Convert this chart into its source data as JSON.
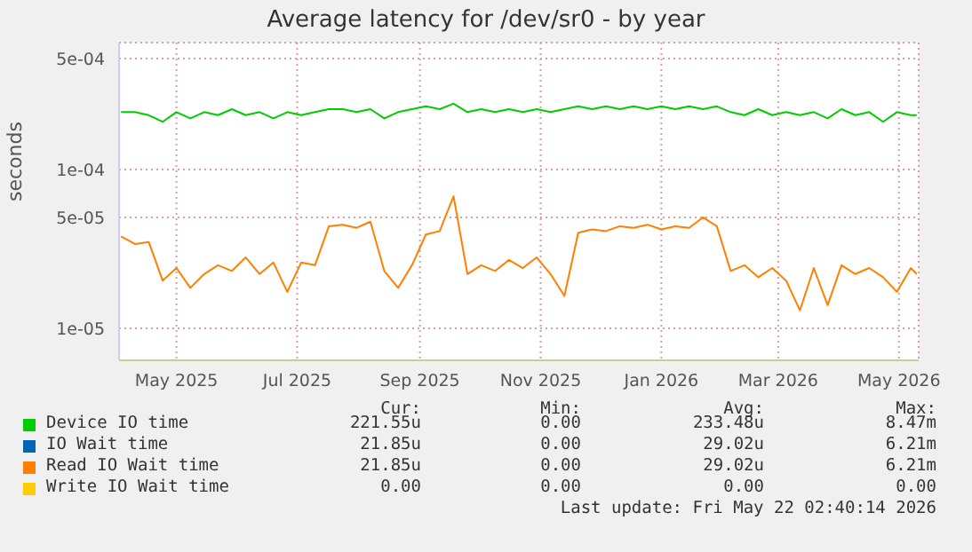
{
  "chart_data": {
    "type": "line",
    "title": "Average latency for /dev/sr0 - by year",
    "ylabel": "seconds",
    "log": "y",
    "grid": true,
    "legend": "bottom",
    "marker": "none",
    "line_style": "solid",
    "x": [
      "2025-04-03",
      "2025-04-10",
      "2025-04-17",
      "2025-04-24",
      "2025-05-01",
      "2025-05-08",
      "2025-05-15",
      "2025-05-22",
      "2025-05-29",
      "2025-06-05",
      "2025-06-12",
      "2025-06-19",
      "2025-06-26",
      "2025-07-03",
      "2025-07-10",
      "2025-07-17",
      "2025-07-24",
      "2025-07-31",
      "2025-08-07",
      "2025-08-14",
      "2025-08-21",
      "2025-08-28",
      "2025-09-04",
      "2025-09-11",
      "2025-09-18",
      "2025-09-25",
      "2025-10-02",
      "2025-10-09",
      "2025-10-16",
      "2025-10-23",
      "2025-10-30",
      "2025-11-06",
      "2025-11-13",
      "2025-11-20",
      "2025-11-27",
      "2025-12-04",
      "2025-12-11",
      "2025-12-18",
      "2025-12-25",
      "2026-01-01",
      "2026-01-08",
      "2026-01-15",
      "2026-01-22",
      "2026-01-29",
      "2026-02-05",
      "2026-02-12",
      "2026-02-19",
      "2026-02-26",
      "2026-03-05",
      "2026-03-12",
      "2026-03-19",
      "2026-03-26",
      "2026-04-02",
      "2026-04-09",
      "2026-04-16",
      "2026-04-23",
      "2026-04-30",
      "2026-05-07",
      "2026-05-10"
    ],
    "xlim": [
      "2025-04-02",
      "2026-05-11"
    ],
    "xticks": [
      {
        "value": "2025-05-01",
        "label": "May 2025"
      },
      {
        "value": "2025-07-01",
        "label": "Jul 2025"
      },
      {
        "value": "2025-09-01",
        "label": "Sep 2025"
      },
      {
        "value": "2025-11-01",
        "label": "Nov 2025"
      },
      {
        "value": "2026-01-01",
        "label": "Jan 2026"
      },
      {
        "value": "2026-03-01",
        "label": "Mar 2026"
      },
      {
        "value": "2026-05-01",
        "label": "May 2026"
      }
    ],
    "ylim": [
      6.3e-06,
      0.00063
    ],
    "yticks": [
      {
        "value": 1e-05,
        "label": "1e-05"
      },
      {
        "value": 5e-05,
        "label": "5e-05"
      },
      {
        "value": 0.0001,
        "label": "1e-04"
      },
      {
        "value": 0.0005,
        "label": "5e-04"
      }
    ],
    "series": [
      {
        "name": "Device IO time",
        "color": "#00cc00",
        "values": [
          0.00023,
          0.00023,
          0.00022,
          0.0002,
          0.00023,
          0.00021,
          0.00023,
          0.00022,
          0.00024,
          0.00022,
          0.00023,
          0.00021,
          0.00023,
          0.00022,
          0.00023,
          0.00024,
          0.00024,
          0.00023,
          0.00024,
          0.00021,
          0.00023,
          0.00024,
          0.00025,
          0.00024,
          0.00026,
          0.00023,
          0.00024,
          0.00023,
          0.00024,
          0.00023,
          0.00024,
          0.00023,
          0.00024,
          0.00025,
          0.00024,
          0.00025,
          0.00024,
          0.00025,
          0.00024,
          0.00025,
          0.00024,
          0.00025,
          0.00024,
          0.00025,
          0.00023,
          0.00022,
          0.00024,
          0.00022,
          0.00023,
          0.00022,
          0.00023,
          0.00021,
          0.00024,
          0.00022,
          0.00023,
          0.0002,
          0.00023,
          0.00022,
          0.00022
        ]
      },
      {
        "name": "IO Wait time",
        "color": "#0066b3",
        "values": [
          null,
          null,
          null,
          null,
          null,
          null,
          null,
          null,
          null,
          null,
          null,
          null,
          null,
          null,
          null,
          null,
          null,
          null,
          null,
          null,
          null,
          null,
          null,
          null,
          null,
          null,
          null,
          null,
          null,
          null,
          null,
          null,
          null,
          null,
          null,
          null,
          null,
          null,
          null,
          null,
          null,
          null,
          null,
          null,
          null,
          null,
          null,
          null,
          null,
          null,
          null,
          null,
          null,
          null,
          null,
          null,
          null,
          null,
          null
        ]
      },
      {
        "name": "Read IO Wait time",
        "color": "#ff8000",
        "values": [
          3.8e-05,
          3.4e-05,
          3.5e-05,
          2e-05,
          2.4e-05,
          1.8e-05,
          2.2e-05,
          2.5e-05,
          2.3e-05,
          2.8e-05,
          2.2e-05,
          2.6e-05,
          1.7e-05,
          2.6e-05,
          2.5e-05,
          4.4e-05,
          4.5e-05,
          4.3e-05,
          4.7e-05,
          2.3e-05,
          1.8e-05,
          2.5e-05,
          3.9e-05,
          4.1e-05,
          6.8e-05,
          2.2e-05,
          2.5e-05,
          2.3e-05,
          2.7e-05,
          2.4e-05,
          2.8e-05,
          2.2e-05,
          1.6e-05,
          4e-05,
          4.2e-05,
          4.1e-05,
          4.4e-05,
          4.3e-05,
          4.5e-05,
          4.2e-05,
          4.4e-05,
          4.3e-05,
          5e-05,
          4.4e-05,
          2.3e-05,
          2.5e-05,
          2.1e-05,
          2.4e-05,
          2e-05,
          1.3e-05,
          2.4e-05,
          1.4e-05,
          2.5e-05,
          2.2e-05,
          2.4e-05,
          2.1e-05,
          1.7e-05,
          2.4e-05,
          2.2e-05
        ]
      },
      {
        "name": "Write IO Wait time",
        "color": "#ffcc00",
        "values": [
          null,
          null,
          null,
          null,
          null,
          null,
          null,
          null,
          null,
          null,
          null,
          null,
          null,
          null,
          null,
          null,
          null,
          null,
          null,
          null,
          null,
          null,
          null,
          null,
          null,
          null,
          null,
          null,
          null,
          null,
          null,
          null,
          null,
          null,
          null,
          null,
          null,
          null,
          null,
          null,
          null,
          null,
          null,
          null,
          null,
          null,
          null,
          null,
          null,
          null,
          null,
          null,
          null,
          null,
          null,
          null,
          null,
          null,
          null
        ]
      }
    ],
    "annotations": [
      "Cur:",
      "Min:",
      "Avg:",
      "Max:",
      "221.55u",
      "0.00",
      "233.48u",
      "8.47m",
      "21.85u",
      "0.00",
      "29.02u",
      "6.21m",
      "21.85u",
      "0.00",
      "29.02u",
      "6.21m",
      "0.00",
      "0.00",
      "0.00",
      "0.00",
      "Last update: Fri May 22 02:40:14 2026"
    ]
  }
}
